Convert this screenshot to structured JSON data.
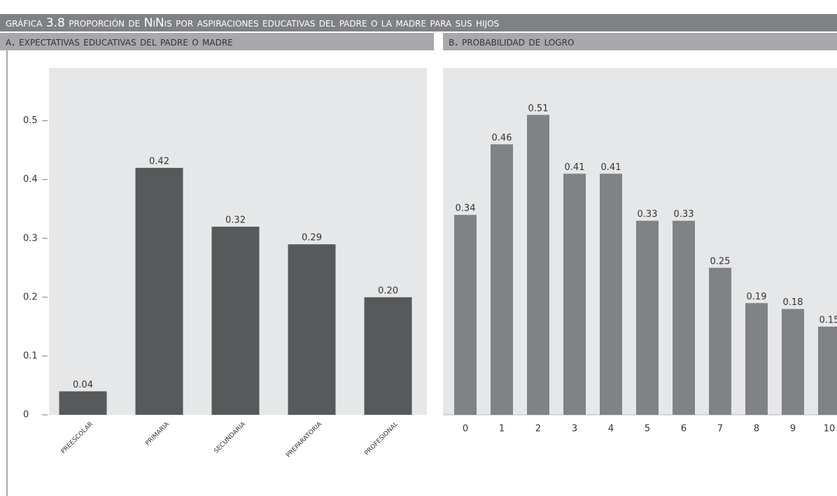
{
  "title": "gráfica 3.8 proporción de NiNis por aspiraciones educativas del padre o la madre para sus hijos",
  "chart_data": [
    {
      "type": "bar",
      "title": "a.  expectativas educativas del padre o madre",
      "categories": [
        "preescolar",
        "primaria",
        "secundaria",
        "preparatoria",
        "profesional"
      ],
      "values": [
        0.04,
        0.42,
        0.32,
        0.29,
        0.2
      ],
      "value_labels": [
        "0.04",
        "0.42",
        "0.32",
        "0.29",
        "0.20"
      ],
      "color": "#58595b",
      "ylim": [
        0,
        0.59
      ],
      "yticks": [
        0,
        0.1,
        0.2,
        0.3,
        0.4,
        0.5
      ]
    },
    {
      "type": "bar",
      "title": "b.  probabilidad de logro",
      "categories": [
        "0",
        "1",
        "2",
        "3",
        "4",
        "5",
        "6",
        "7",
        "8",
        "9",
        "10"
      ],
      "values": [
        0.34,
        0.46,
        0.51,
        0.41,
        0.41,
        0.33,
        0.33,
        0.25,
        0.19,
        0.18,
        0.15
      ],
      "value_labels": [
        "0.34",
        "0.46",
        "0.51",
        "0.41",
        "0.41",
        "0.33",
        "0.33",
        "0.25",
        "0.19",
        "0.18",
        "0.15"
      ],
      "color": "#808285",
      "ylim": [
        0,
        0.59
      ]
    }
  ]
}
